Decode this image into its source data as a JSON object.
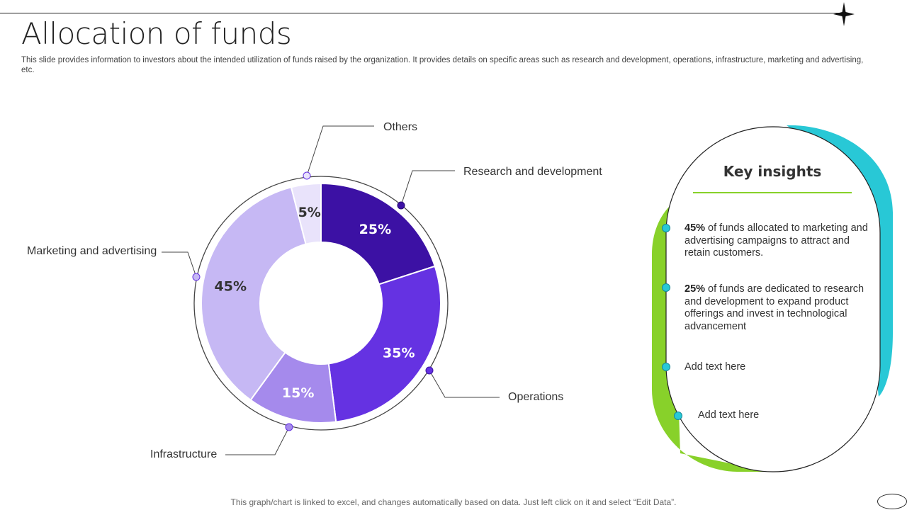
{
  "header": {
    "title": "Allocation of funds",
    "subtitle": "This slide provides information to investors about the intended utilization of funds raised by the organization. It provides details on specific areas such as research and development, operations, infrastructure, marketing and advertising, etc."
  },
  "chart_data": {
    "type": "pie",
    "variant": "donut",
    "unit": "%",
    "categories": [
      "Research and development",
      "Operations",
      "Infrastructure",
      "Marketing and advertising",
      "Others"
    ],
    "values": [
      25,
      35,
      15,
      45,
      5
    ],
    "labels": [
      "25%",
      "35%",
      "15%",
      "45%",
      "5%"
    ],
    "colors": [
      "#3c11a4",
      "#6532e2",
      "#a58aec",
      "#c6b8f4",
      "#e9e3fb"
    ],
    "label_colors": [
      "#ffffff",
      "#ffffff",
      "#ffffff",
      "#333333",
      "#333333"
    ]
  },
  "insights": {
    "title": "Key insights",
    "items": [
      {
        "strong": "45%",
        "text": " of funds allocated to marketing and advertising campaigns to attract and retain customers."
      },
      {
        "strong": "25%",
        "text": " of funds are dedicated to research and development to expand product offerings and invest in technological advancement"
      },
      {
        "strong": "",
        "text": "Add text here"
      },
      {
        "strong": "",
        "text": "Add text here"
      }
    ]
  },
  "footer": {
    "note": "This graph/chart is linked to excel,  and changes automatically based on data. Just left click on it and select “Edit Data”."
  },
  "theme": {
    "accent_cyan": "#28c8d6",
    "accent_green": "#88d12a"
  }
}
